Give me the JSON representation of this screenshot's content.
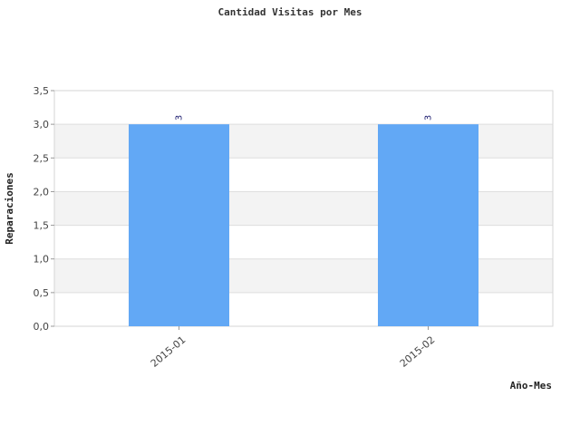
{
  "chart_data": {
    "type": "bar",
    "title": "Cantidad Visitas por Mes",
    "xlabel": "Año-Mes",
    "ylabel": "Reparaciones",
    "categories": [
      "2015-01",
      "2015-02"
    ],
    "values": [
      3,
      3
    ],
    "data_labels": [
      "3",
      "3"
    ],
    "ylim": [
      0,
      3.5
    ],
    "yticks": [
      "0,0",
      "0,5",
      "1,0",
      "1,5",
      "2,0",
      "2,5",
      "3,0",
      "3,5"
    ],
    "grid": true,
    "legend": "none",
    "colors": {
      "bar": "#62a8f5",
      "band": "#f3f3f3",
      "grid": "#dddddd",
      "border": "#d6d6d6"
    }
  }
}
